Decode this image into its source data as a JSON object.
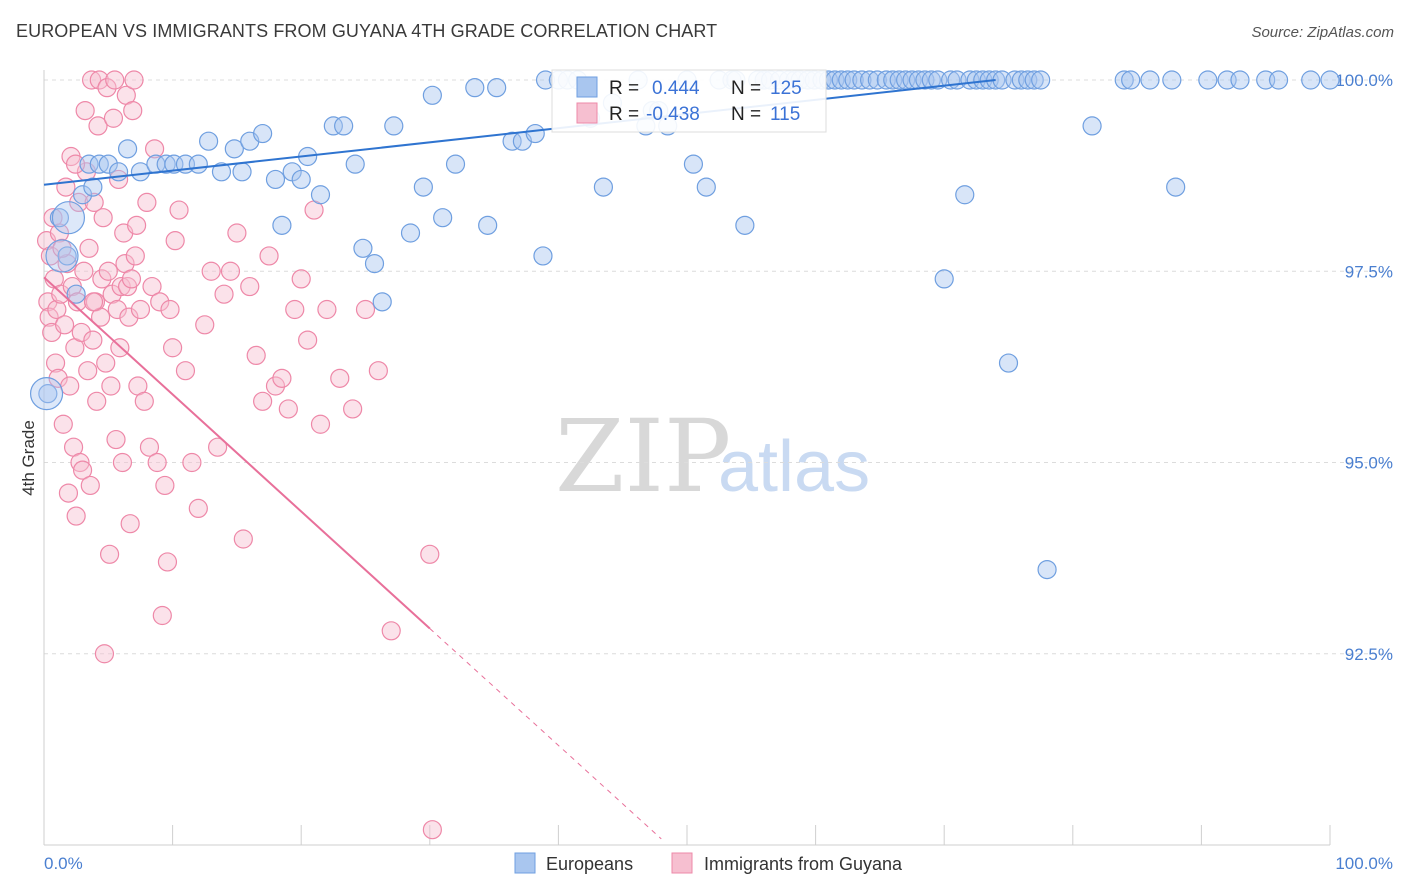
{
  "title": "EUROPEAN VS IMMIGRANTS FROM GUYANA 4TH GRADE CORRELATION CHART",
  "source": "Source: ZipAtlas.com",
  "watermark": {
    "zip": "ZIP",
    "atlas": "atlas"
  },
  "colors": {
    "blue": "#6f9fe0",
    "blue_fill": "#a9c6ef",
    "blue_line": "#2f74d0",
    "pink": "#ee88a8",
    "pink_fill": "#f6bfd0",
    "pink_line": "#e8709a",
    "grid": "#dcdcdc",
    "tick_text": "#4a7fd0"
  },
  "stats": [
    {
      "series": "Europeans",
      "r_label": "R =",
      "r_value": "0.444",
      "n_label": "N =",
      "n_value": "125"
    },
    {
      "series": "Immigrants from Guyana",
      "r_label": "R =",
      "r_value": "-0.438",
      "n_label": "N =",
      "n_value": "115"
    }
  ],
  "chart_data": {
    "type": "scatter",
    "title": "EUROPEAN VS IMMIGRANTS FROM GUYANA 4TH GRADE CORRELATION CHART",
    "xlabel": "",
    "ylabel": "4th Grade",
    "xlim": [
      0,
      100
    ],
    "ylim": [
      90.0,
      100.25
    ],
    "x_tick_labels": [
      "0.0%",
      "100.0%"
    ],
    "y_ticks": [
      92.5,
      95.0,
      97.5,
      100.0
    ],
    "y_tick_labels": [
      "92.5%",
      "95.0%",
      "97.5%",
      "100.0%"
    ],
    "legend_position": "bottom",
    "grid": true,
    "series": [
      {
        "name": "Europeans",
        "color": "#6f9fe0",
        "trend": {
          "x": [
            0,
            74
          ],
          "y": [
            98.63,
            100.0
          ]
        },
        "points": [
          [
            0.3,
            95.9
          ],
          [
            1.2,
            98.2
          ],
          [
            1.8,
            97.7
          ],
          [
            2.5,
            97.2
          ],
          [
            3,
            98.5
          ],
          [
            3.5,
            98.9
          ],
          [
            3.8,
            98.6
          ],
          [
            4.3,
            98.9
          ],
          [
            5,
            98.9
          ],
          [
            5.8,
            98.8
          ],
          [
            6.5,
            99.1
          ],
          [
            7.5,
            98.8
          ],
          [
            8.7,
            98.9
          ],
          [
            9.5,
            98.9
          ],
          [
            10.1,
            98.9
          ],
          [
            11,
            98.9
          ],
          [
            12,
            98.9
          ],
          [
            12.8,
            99.2
          ],
          [
            13.8,
            98.8
          ],
          [
            14.8,
            99.1
          ],
          [
            15.4,
            98.8
          ],
          [
            16,
            99.2
          ],
          [
            17,
            99.3
          ],
          [
            18,
            98.7
          ],
          [
            18.5,
            98.1
          ],
          [
            19.3,
            98.8
          ],
          [
            20,
            98.7
          ],
          [
            20.5,
            99.0
          ],
          [
            21.5,
            98.5
          ],
          [
            22.5,
            99.4
          ],
          [
            23.3,
            99.4
          ],
          [
            24.2,
            98.9
          ],
          [
            24.8,
            97.8
          ],
          [
            25.7,
            97.6
          ],
          [
            26.3,
            97.1
          ],
          [
            27.2,
            99.4
          ],
          [
            28.5,
            98.0
          ],
          [
            29.5,
            98.6
          ],
          [
            30.2,
            99.8
          ],
          [
            31,
            98.2
          ],
          [
            32,
            98.9
          ],
          [
            33.5,
            99.9
          ],
          [
            34.5,
            98.1
          ],
          [
            35.2,
            99.9
          ],
          [
            36.4,
            99.2
          ],
          [
            37.2,
            99.2
          ],
          [
            38.2,
            99.3
          ],
          [
            38.8,
            97.7
          ],
          [
            39,
            100.0
          ],
          [
            40,
            100.0
          ],
          [
            40.7,
            100.0
          ],
          [
            41.5,
            100.0
          ],
          [
            42.5,
            99.5
          ],
          [
            43.5,
            98.6
          ],
          [
            44.2,
            99.7
          ],
          [
            46.2,
            100.0
          ],
          [
            46.8,
            99.4
          ],
          [
            47.3,
            99.6
          ],
          [
            47.8,
            99.6
          ],
          [
            48.5,
            99.4
          ],
          [
            50,
            100.0
          ],
          [
            50.5,
            98.9
          ],
          [
            51.5,
            98.6
          ],
          [
            52.5,
            100.0
          ],
          [
            53.5,
            100.0
          ],
          [
            53.8,
            100.0
          ],
          [
            54.5,
            98.1
          ],
          [
            55.5,
            100.0
          ],
          [
            56,
            100.0
          ],
          [
            56.5,
            100.0
          ],
          [
            57.2,
            100.0
          ],
          [
            57.9,
            100.0
          ],
          [
            58.4,
            100.0
          ],
          [
            58.8,
            100.0
          ],
          [
            59.4,
            100.0
          ],
          [
            59.9,
            100.0
          ],
          [
            60.5,
            100.0
          ],
          [
            61,
            100.0
          ],
          [
            61.5,
            100.0
          ],
          [
            62,
            100.0
          ],
          [
            62.5,
            100.0
          ],
          [
            63,
            100.0
          ],
          [
            63.6,
            100.0
          ],
          [
            64.2,
            100.0
          ],
          [
            64.8,
            100.0
          ],
          [
            65.5,
            100.0
          ],
          [
            66,
            100.0
          ],
          [
            66.5,
            100.0
          ],
          [
            67,
            100.0
          ],
          [
            67.5,
            100.0
          ],
          [
            68,
            100.0
          ],
          [
            68.5,
            100.0
          ],
          [
            69,
            100.0
          ],
          [
            69.5,
            100.0
          ],
          [
            70,
            97.4
          ],
          [
            70.5,
            100.0
          ],
          [
            71,
            100.0
          ],
          [
            71.6,
            98.5
          ],
          [
            72,
            100.0
          ],
          [
            72.5,
            100.0
          ],
          [
            73,
            100.0
          ],
          [
            73.5,
            100.0
          ],
          [
            74,
            100.0
          ],
          [
            74.5,
            100.0
          ],
          [
            75,
            96.3
          ],
          [
            75.5,
            100.0
          ],
          [
            76,
            100.0
          ],
          [
            76.5,
            100.0
          ],
          [
            77,
            100.0
          ],
          [
            77.5,
            100.0
          ],
          [
            78,
            93.6
          ],
          [
            81.5,
            99.4
          ],
          [
            84,
            100.0
          ],
          [
            84.5,
            100.0
          ],
          [
            86,
            100.0
          ],
          [
            87.7,
            100.0
          ],
          [
            88,
            98.6
          ],
          [
            90.5,
            100.0
          ],
          [
            92,
            100.0
          ],
          [
            93,
            100.0
          ],
          [
            95,
            100.0
          ],
          [
            96,
            100.0
          ],
          [
            98.5,
            100.0
          ],
          [
            100,
            100.0
          ]
        ]
      },
      {
        "name": "Immigrants from Guyana",
        "color": "#ee88a8",
        "trend": {
          "x": [
            0,
            30
          ],
          "y": [
            97.42,
            92.83
          ]
        },
        "trend_dashed": {
          "x": [
            30,
            48
          ],
          "y": [
            92.83,
            90.08
          ]
        },
        "points": [
          [
            0.2,
            97.9
          ],
          [
            0.3,
            97.1
          ],
          [
            0.4,
            96.9
          ],
          [
            0.5,
            97.7
          ],
          [
            0.6,
            96.7
          ],
          [
            0.7,
            98.2
          ],
          [
            0.8,
            97.4
          ],
          [
            0.9,
            96.3
          ],
          [
            1.0,
            97.0
          ],
          [
            1.1,
            96.1
          ],
          [
            1.2,
            98.0
          ],
          [
            1.3,
            97.2
          ],
          [
            1.5,
            95.5
          ],
          [
            1.6,
            96.8
          ],
          [
            1.7,
            98.6
          ],
          [
            1.8,
            97.6
          ],
          [
            1.9,
            94.6
          ],
          [
            2.0,
            96.0
          ],
          [
            2.1,
            99.0
          ],
          [
            2.2,
            97.3
          ],
          [
            2.3,
            95.2
          ],
          [
            2.4,
            96.5
          ],
          [
            2.5,
            94.3
          ],
          [
            2.6,
            97.1
          ],
          [
            2.7,
            98.4
          ],
          [
            2.8,
            95.0
          ],
          [
            2.9,
            96.7
          ],
          [
            3.0,
            94.9
          ],
          [
            3.1,
            97.5
          ],
          [
            3.2,
            99.6
          ],
          [
            3.3,
            98.8
          ],
          [
            3.4,
            96.2
          ],
          [
            3.5,
            97.8
          ],
          [
            3.6,
            94.7
          ],
          [
            3.7,
            100.0
          ],
          [
            3.8,
            96.6
          ],
          [
            3.9,
            98.4
          ],
          [
            4.0,
            97.1
          ],
          [
            4.1,
            95.8
          ],
          [
            4.2,
            99.4
          ],
          [
            4.3,
            100.0
          ],
          [
            4.4,
            96.9
          ],
          [
            4.5,
            97.4
          ],
          [
            4.6,
            98.2
          ],
          [
            4.7,
            92.5
          ],
          [
            4.8,
            96.3
          ],
          [
            4.9,
            99.9
          ],
          [
            5.0,
            97.5
          ],
          [
            5.1,
            93.8
          ],
          [
            5.2,
            96.0
          ],
          [
            5.3,
            97.2
          ],
          [
            5.4,
            99.5
          ],
          [
            5.5,
            100.0
          ],
          [
            5.6,
            95.3
          ],
          [
            5.7,
            97.0
          ],
          [
            5.8,
            98.7
          ],
          [
            5.9,
            96.5
          ],
          [
            6.0,
            97.3
          ],
          [
            6.1,
            95.0
          ],
          [
            6.2,
            98.0
          ],
          [
            6.3,
            97.6
          ],
          [
            6.4,
            99.8
          ],
          [
            6.5,
            97.3
          ],
          [
            6.6,
            96.9
          ],
          [
            6.7,
            94.2
          ],
          [
            6.8,
            97.4
          ],
          [
            6.9,
            99.6
          ],
          [
            7.0,
            100.0
          ],
          [
            7.1,
            97.7
          ],
          [
            7.2,
            98.1
          ],
          [
            7.3,
            96.0
          ],
          [
            7.5,
            97.0
          ],
          [
            7.8,
            95.8
          ],
          [
            8.0,
            98.4
          ],
          [
            8.2,
            95.2
          ],
          [
            8.4,
            97.3
          ],
          [
            8.6,
            99.1
          ],
          [
            8.8,
            95.0
          ],
          [
            9.0,
            97.1
          ],
          [
            9.2,
            93.0
          ],
          [
            9.4,
            94.7
          ],
          [
            9.6,
            93.7
          ],
          [
            9.8,
            97.0
          ],
          [
            10,
            96.5
          ],
          [
            10.2,
            97.9
          ],
          [
            10.5,
            98.3
          ],
          [
            11,
            96.2
          ],
          [
            11.5,
            95.0
          ],
          [
            12,
            94.4
          ],
          [
            12.5,
            96.8
          ],
          [
            13,
            97.5
          ],
          [
            13.5,
            95.2
          ],
          [
            14,
            97.2
          ],
          [
            14.5,
            97.5
          ],
          [
            15,
            98.0
          ],
          [
            15.5,
            94.0
          ],
          [
            16,
            97.3
          ],
          [
            16.5,
            96.4
          ],
          [
            17,
            95.8
          ],
          [
            17.5,
            97.7
          ],
          [
            18,
            96.0
          ],
          [
            18.5,
            96.1
          ],
          [
            19,
            95.7
          ],
          [
            19.5,
            97.0
          ],
          [
            20,
            97.4
          ],
          [
            20.5,
            96.6
          ],
          [
            21,
            98.3
          ],
          [
            21.5,
            95.5
          ],
          [
            22,
            97.0
          ],
          [
            23,
            96.1
          ],
          [
            24,
            95.7
          ],
          [
            25,
            97.0
          ],
          [
            26,
            96.2
          ],
          [
            27,
            92.8
          ],
          [
            30,
            93.8
          ],
          [
            30.2,
            90.2
          ],
          [
            1.4,
            97.8
          ],
          [
            2.45,
            98.9
          ],
          [
            3.85,
            97.1
          ]
        ]
      }
    ]
  }
}
